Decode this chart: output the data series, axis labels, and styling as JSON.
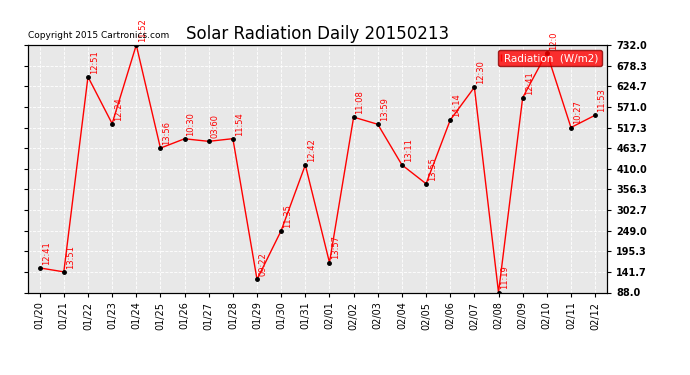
{
  "title": "Solar Radiation Daily 20150213",
  "copyright": "Copyright 2015 Cartronics.com",
  "legend_label": "Radiation  (W/m2)",
  "x_labels": [
    "01/20",
    "01/21",
    "01/22",
    "01/23",
    "01/24",
    "01/25",
    "01/26",
    "01/27",
    "01/28",
    "01/29",
    "01/30",
    "01/31",
    "02/01",
    "02/02",
    "02/03",
    "02/04",
    "02/05",
    "02/06",
    "02/07",
    "02/08",
    "02/09",
    "02/10",
    "02/11",
    "02/12"
  ],
  "y_vals": [
    152.0,
    141.7,
    649.3,
    527.4,
    732.0,
    463.7,
    488.0,
    481.3,
    488.3,
    122.0,
    249.0,
    420.0,
    166.0,
    544.3,
    525.7,
    420.0,
    371.0,
    536.7,
    622.0,
    88.0,
    595.0,
    712.0,
    517.3,
    549.3
  ],
  "point_labels": [
    "12:41",
    "13:51",
    "12:51",
    "12:24",
    "11:52",
    "13:56",
    "10:30",
    "03:60",
    "11:54",
    "09:22",
    "11:35",
    "12:42",
    "13:57",
    "11:08",
    "13:59",
    "13:11",
    "13:55",
    "14:14",
    "12:30",
    "11:19",
    "12:41",
    "12:0",
    "10:27",
    "11:53"
  ],
  "y_ticks": [
    88.0,
    141.7,
    195.3,
    249.0,
    302.7,
    356.3,
    410.0,
    463.7,
    517.3,
    571.0,
    624.7,
    678.3,
    732.0
  ],
  "line_color": "#FF0000",
  "marker_color": "#000000",
  "plot_bg_color": "#E8E8E8",
  "grid_color": "#FFFFFF",
  "title_fontsize": 12,
  "annot_fontsize": 6,
  "tick_fontsize": 7
}
